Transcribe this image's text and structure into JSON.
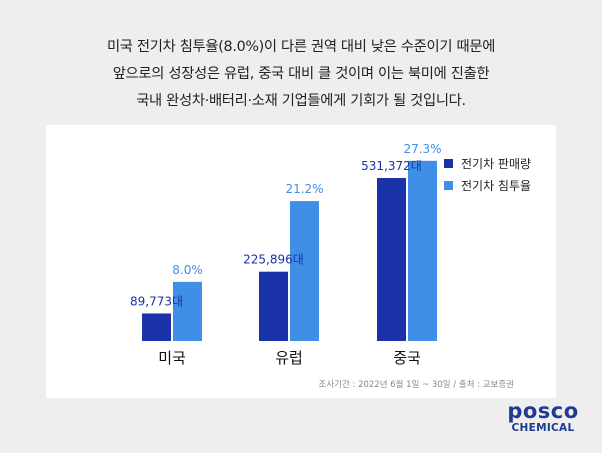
{
  "headline": {
    "line1": "미국 전기차 침투율(8.0%)이 다른 권역 대비 낮은 수준이기 때문에",
    "line2": "앞으로의 성장성은 유럽, 중국 대비 클 것이며 이는 북미에 진출한",
    "line3": "국내 완성차·배터리·소재 기업들에게 기회가 될 것입니다."
  },
  "chart_data": {
    "type": "bar",
    "categories": [
      "미국",
      "유럽",
      "중국"
    ],
    "series": [
      {
        "name": "전기차 판매량",
        "color": "#1a33a8",
        "values": [
          89773,
          225896,
          531372
        ],
        "labels": [
          "89,773대",
          "225,896대",
          "531,372대"
        ]
      },
      {
        "name": "전기차 침투율",
        "color": "#3f8fe6",
        "values": [
          8.0,
          21.2,
          27.3
        ],
        "labels": [
          "8.0%",
          "21.2%",
          "27.3%"
        ]
      }
    ],
    "legend_position": "top-right",
    "grid": false,
    "source": "조사기간 : 2022년 6월 1일 ~ 30일 / 출처 : 교보증권"
  },
  "logo": {
    "main": "posco",
    "sub": "CHEMICAL"
  }
}
